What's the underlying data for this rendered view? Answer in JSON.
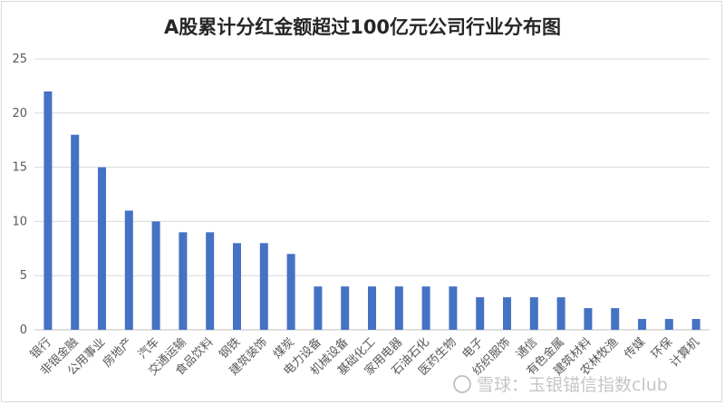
{
  "chart_data": {
    "type": "bar",
    "title": "A股累计分红金额超过100亿元公司行业分布图",
    "categories": [
      "银行",
      "非银金融",
      "公用事业",
      "房地产",
      "汽车",
      "交通运输",
      "食品饮料",
      "钢铁",
      "建筑装饰",
      "煤炭",
      "电力设备",
      "机械设备",
      "基础化工",
      "家用电器",
      "石油石化",
      "医药生物",
      "电子",
      "纺织服饰",
      "通信",
      "有色金属",
      "建筑材料",
      "农林牧渔",
      "传媒",
      "环保",
      "计算机"
    ],
    "values": [
      22,
      18,
      15,
      11,
      10,
      9,
      9,
      8,
      8,
      7,
      4,
      4,
      4,
      4,
      4,
      4,
      3,
      3,
      3,
      3,
      2,
      2,
      1,
      1,
      1
    ],
    "ylim": [
      0,
      25
    ],
    "yticks": [
      0,
      5,
      10,
      15,
      20,
      25
    ],
    "grid": true,
    "legend": "none",
    "bar_color": "#4472c4",
    "grid_color": "#d9d9d9",
    "axis_color": "#bfbfbf",
    "text_color": "#595959"
  },
  "watermark": {
    "text": "雪球：玉银锚信指数club",
    "icon": "snowball-logo-icon"
  }
}
